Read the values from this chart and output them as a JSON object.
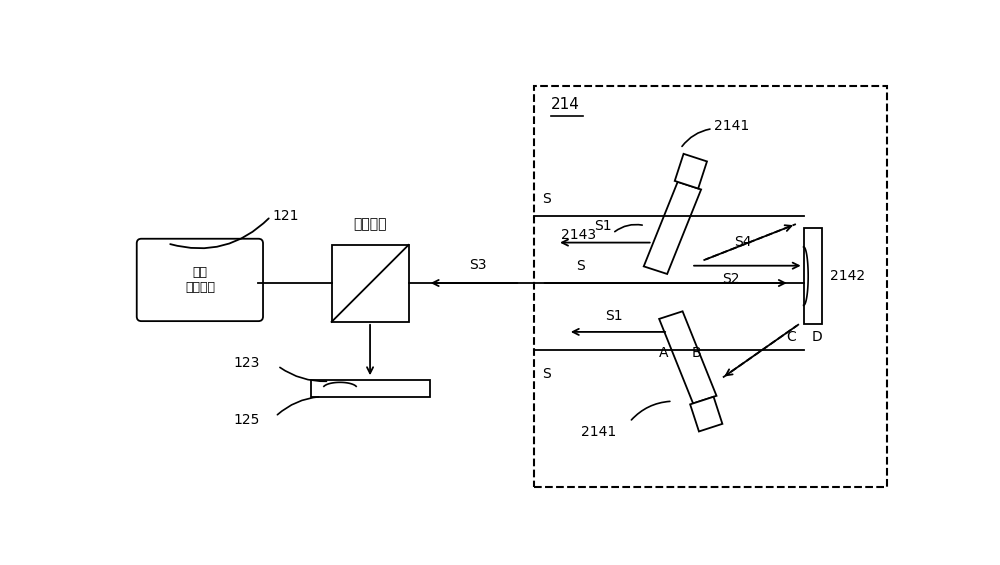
{
  "bg_color": "#ffffff",
  "fig_width": 10.0,
  "fig_height": 5.65,
  "dpi": 100,
  "labels": {
    "guangyuan": "光源\n（复色）",
    "fenguan": "分光棱镜",
    "label_121": "121",
    "label_123": "123",
    "label_125": "125",
    "label_214": "214",
    "label_2141_top": "2141",
    "label_2141_bot": "2141",
    "label_2142": "2142",
    "label_2143": "2143",
    "label_S_top": "S",
    "label_S1_top": "S1",
    "label_S2": "S2",
    "label_S3": "S3",
    "label_S4": "S4",
    "label_S_mid": "S",
    "label_S1_bot": "S1",
    "label_S_bot": "S",
    "label_A": "A",
    "label_B": "B",
    "label_C": "C",
    "label_D": "D"
  }
}
